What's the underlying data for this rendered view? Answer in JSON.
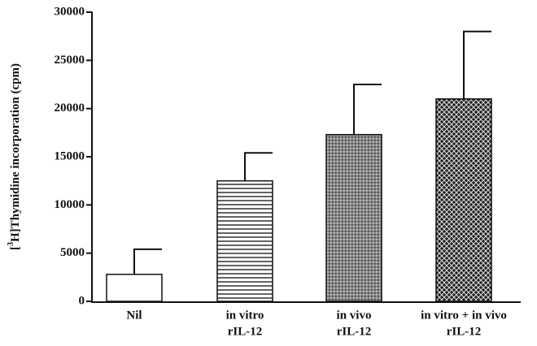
{
  "chart_data": {
    "type": "bar",
    "y_label": [
      "[",
      "3",
      "H]Thymidine incorporation (cpm)"
    ],
    "categories": [
      [
        "Nil"
      ],
      [
        "in vitro",
        "rIL-12"
      ],
      [
        "in vivo",
        "rIL-12"
      ],
      [
        "in vitro + in vivo",
        "rIL-12"
      ]
    ],
    "values": [
      2800,
      12500,
      17300,
      21000
    ],
    "errors": [
      2600,
      2900,
      5200,
      7000
    ],
    "fills": [
      "white",
      "horizontal-lines",
      "stipple",
      "crosshatch"
    ],
    "color": "#111111",
    "ylim": [
      0,
      30000
    ],
    "yticks": [
      0,
      5000,
      10000,
      15000,
      20000,
      25000,
      30000
    ]
  }
}
